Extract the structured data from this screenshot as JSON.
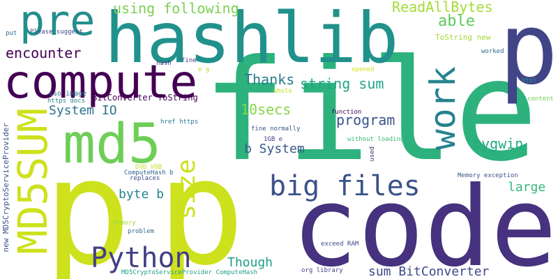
{
  "words": [
    {
      "text": "file",
      "color": "#2db27d"
    },
    {
      "text": "p",
      "color": "#cde11d"
    },
    {
      "text": "p",
      "color": "#cde11d"
    },
    {
      "text": "code",
      "color": "#46327e"
    },
    {
      "text": "hashlib",
      "color": "#21918c"
    },
    {
      "text": "p",
      "color": "#414487"
    },
    {
      "text": "compute",
      "color": "#440154"
    },
    {
      "text": "pre",
      "color": "#218f8d"
    },
    {
      "text": "md5",
      "color": "#6ece58"
    },
    {
      "text": "MD5SUM",
      "color": "#cde11d"
    },
    {
      "text": "work",
      "color": "#26828e"
    },
    {
      "text": "big files",
      "color": "#3b528b"
    },
    {
      "text": "Python",
      "color": "#433e85"
    },
    {
      "text": "size",
      "color": "#cde11d"
    },
    {
      "text": "using following",
      "color": "#7ad151"
    },
    {
      "text": "ReadAllBytes",
      "color": "#a5db36"
    },
    {
      "text": "able",
      "color": "#5ec962"
    },
    {
      "text": "encounter",
      "color": "#440154"
    },
    {
      "text": "Thanks",
      "color": "#287c8e"
    },
    {
      "text": "string sum",
      "color": "#20a486"
    },
    {
      "text": "10secs",
      "color": "#86d549"
    },
    {
      "text": "program",
      "color": "#3b528b"
    },
    {
      "text": "cygwin",
      "color": "#22a884"
    },
    {
      "text": "System IO",
      "color": "#2c728e"
    },
    {
      "text": "b System",
      "color": "#38598c"
    },
    {
      "text": "byte b",
      "color": "#24868e"
    },
    {
      "text": "large",
      "color": "#35b779"
    },
    {
      "text": "Though",
      "color": "#1f9e89"
    },
    {
      "text": "sum BitConverter",
      "color": "#3e4989"
    },
    {
      "text": "BitConverter ToString",
      "color": "#440154"
    },
    {
      "text": "new MD5CryptoServiceProvider",
      "color": "#3b528b"
    },
    {
      "text": "ToString new",
      "color": "#a0da39"
    },
    {
      "text": "Please suggest",
      "color": "#3e4989"
    },
    {
      "text": "put",
      "color": "#31688e"
    },
    {
      "text": "worked",
      "color": "#31688e"
    },
    {
      "text": "hash",
      "color": "#443983"
    },
    {
      "text": "fine",
      "color": "#433e85"
    },
    {
      "text": "e g",
      "color": "#b5de2b"
    },
    {
      "text": "opened",
      "color": "#d2e21b"
    },
    {
      "text": "html",
      "color": "#21918c"
    },
    {
      "text": "iso image",
      "color": "#2e6f8e"
    },
    {
      "text": "whole",
      "color": "#c2df23"
    },
    {
      "text": "https docs",
      "color": "#25848e"
    },
    {
      "text": "content",
      "color": "#6ece58"
    },
    {
      "text": "function",
      "color": "#440154"
    },
    {
      "text": "href https",
      "color": "#2a788e"
    },
    {
      "text": "fine normally",
      "color": "#39568c"
    },
    {
      "text": "1GB e",
      "color": "#443983"
    },
    {
      "text": "without loading",
      "color": "#3dbc74"
    },
    {
      "text": "used",
      "color": "#472d7b"
    },
    {
      "text": "DVD VOB",
      "color": "#c2df23"
    },
    {
      "text": "ComputeHash b",
      "color": "#33638d"
    },
    {
      "text": "replaces",
      "color": "#3e4989"
    },
    {
      "text": "Memory exception",
      "color": "#3b528b"
    },
    {
      "text": "Memory",
      "color": "#a0da39"
    },
    {
      "text": "problem",
      "color": "#31688e"
    },
    {
      "text": "exceed RAM",
      "color": "#3e4989"
    },
    {
      "text": "org library",
      "color": "#433e85"
    },
    {
      "text": "MD5CryptoServiceProvider ComputeHash",
      "color": "#1fa187"
    }
  ]
}
